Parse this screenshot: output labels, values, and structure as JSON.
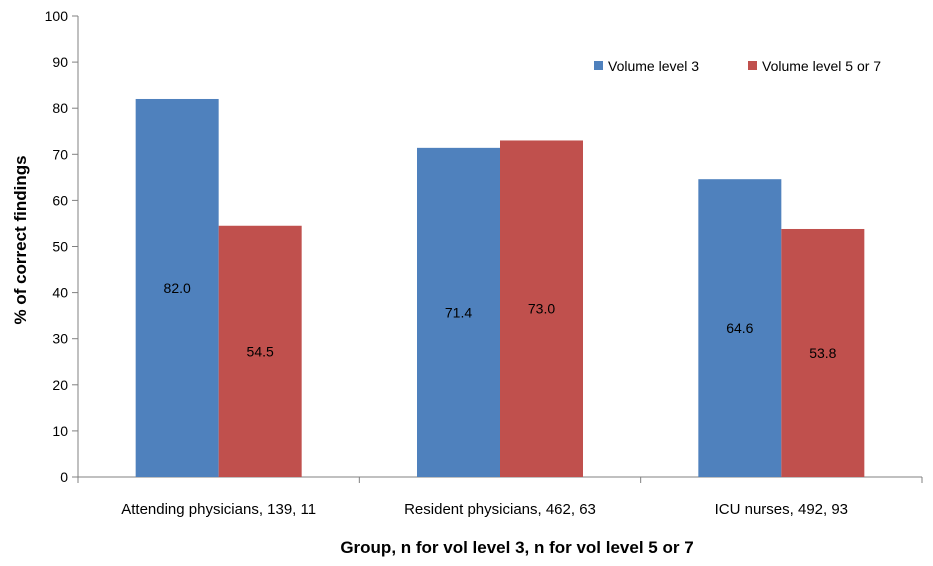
{
  "chart_data": {
    "type": "bar",
    "title": "",
    "xlabel": "Group, n for vol level 3, n for vol level 5 or 7",
    "ylabel": "% of correct findings",
    "ylim": [
      0,
      100
    ],
    "yticks": [
      "0",
      "10",
      "20",
      "30",
      "40",
      "50",
      "60",
      "70",
      "80",
      "90",
      "100"
    ],
    "categories": [
      "Attending physicians, 139, 11",
      "Resident physicians, 462, 63",
      "ICU nurses, 492, 93"
    ],
    "series": [
      {
        "name": "Volume level 3",
        "color": "#4F81BD",
        "values": [
          82.0,
          71.4,
          64.6
        ],
        "labels": [
          "82.0",
          "71.4",
          "64.6"
        ]
      },
      {
        "name": "Volume level 5 or 7",
        "color": "#C0504D",
        "values": [
          54.5,
          73.0,
          53.8
        ],
        "labels": [
          "54.5",
          "73.0",
          "53.8"
        ]
      }
    ],
    "grid": false,
    "legend": "top-right"
  }
}
